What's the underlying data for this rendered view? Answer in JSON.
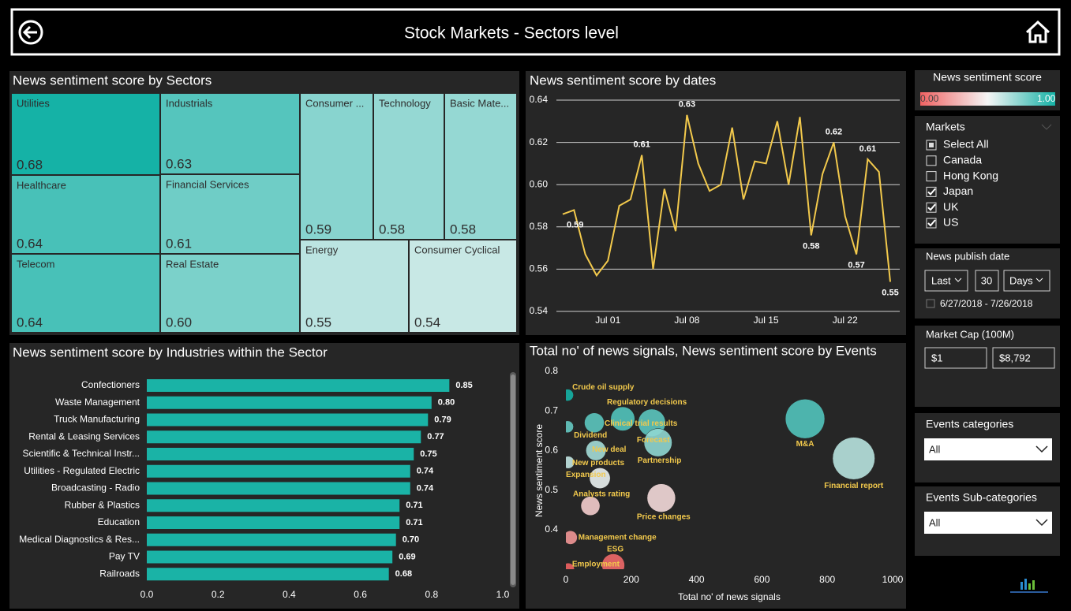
{
  "header": {
    "title": "Stock Markets - Sectors level"
  },
  "chart_data": [
    {
      "type": "treemap",
      "title": "News sentiment score by Sectors",
      "categories": [
        "Utilities",
        "Industrials",
        "Consumer ...",
        "Technology",
        "Basic Mate...",
        "Healthcare",
        "Financial Services",
        "Energy",
        "Consumer Cyclical",
        "Telecom",
        "Real Estate"
      ],
      "values": [
        0.68,
        0.63,
        0.59,
        0.58,
        0.58,
        0.64,
        0.61,
        0.55,
        0.54,
        0.64,
        0.6
      ],
      "value_labels": [
        "0.68",
        "0.63",
        "0.59",
        "0.58",
        "0.58",
        "0.64",
        "0.61",
        "0.55",
        "0.54",
        "0.64",
        "0.60"
      ]
    },
    {
      "type": "line",
      "title": "News sentiment score by dates",
      "categories": [
        null,
        null,
        null,
        null,
        "Jul 01",
        null,
        null,
        null,
        null,
        null,
        null,
        "Jul 08",
        null,
        null,
        null,
        null,
        null,
        null,
        "Jul 15",
        null,
        null,
        null,
        null,
        null,
        null,
        "Jul 22",
        null,
        null,
        null,
        null
      ],
      "values": [
        0.586,
        0.588,
        0.567,
        0.557,
        0.564,
        0.59,
        0.593,
        0.614,
        0.56,
        0.598,
        0.578,
        0.633,
        0.61,
        0.597,
        0.6,
        0.627,
        0.593,
        0.611,
        0.61,
        0.63,
        0.6,
        0.632,
        0.576,
        0.605,
        0.62,
        0.585,
        0.567,
        0.612,
        0.606,
        0.554
      ],
      "value_labels": [
        "0.59",
        null,
        null,
        null,
        null,
        null,
        null,
        "0.61",
        null,
        null,
        null,
        "0.63",
        null,
        null,
        null,
        null,
        null,
        null,
        null,
        null,
        null,
        null,
        "0.58",
        null,
        "0.62",
        null,
        "0.57",
        "0.61",
        null,
        "0.55"
      ],
      "color": "#f2c94c",
      "ylim": [
        0.54,
        0.64
      ],
      "yticks": [
        0.54,
        0.56,
        0.58,
        {
          "value": 0.6,
          "label": "0.60"
        },
        0.62,
        0.64
      ],
      "grid": true
    },
    {
      "type": "hbar",
      "title": "News sentiment score by Industries within the Sector",
      "categories": [
        "Confectioners",
        "Waste Management",
        "Truck Manufacturing",
        "Rental & Leasing Services",
        "Scientific & Technical Instr...",
        "Utilities - Regulated Electric",
        "Broadcasting - Radio",
        "Rubber & Plastics",
        "Education",
        "Medical Diagnostics & Res...",
        "Pay TV",
        "Railroads"
      ],
      "values": [
        0.85,
        0.8,
        0.79,
        0.77,
        0.75,
        0.74,
        0.74,
        0.71,
        0.71,
        0.7,
        0.69,
        0.68
      ],
      "value_labels": [
        "0.85",
        "0.80",
        "0.79",
        "0.77",
        "0.75",
        "0.74",
        "0.74",
        "0.71",
        "0.71",
        "0.70",
        "0.69",
        "0.68"
      ],
      "color": "#1ab3a6",
      "xlim": [
        0,
        1
      ],
      "xticks": [
        {
          "value": 0,
          "label": "0.0"
        },
        0.2,
        0.4,
        0.6,
        0.8,
        {
          "value": 1,
          "label": "1.0"
        }
      ]
    },
    {
      "type": "scatter",
      "title": "Total no' of news signals, News sentiment score by Events",
      "x_label": "Total no' of news signals",
      "y_label": "News sentiment score",
      "categories": [
        "Crude oil supply",
        "Regulatory decisions",
        "Clinical trial results",
        "Dividend",
        "Forecast",
        "Partnership",
        "New deal",
        "New products",
        "Expansion",
        "Analysts rating",
        "Price changes",
        "Management change",
        "ESG",
        "Employment",
        "M&A",
        "Financial report"
      ],
      "x": [
        5,
        87,
        174,
        5,
        263,
        282,
        92,
        7,
        104,
        75,
        292,
        14,
        145,
        7,
        732,
        881
      ],
      "values": [
        0.74,
        0.67,
        0.68,
        0.66,
        0.67,
        0.62,
        0.6,
        0.57,
        0.53,
        0.46,
        0.48,
        0.38,
        0.31,
        0.3,
        0.68,
        0.58
      ],
      "label_color": "#f2c94c",
      "xlim": [
        0,
        1000
      ],
      "xticks": [
        0,
        200,
        400,
        600,
        800,
        1000
      ],
      "ylim": [
        0.3,
        0.8
      ],
      "yticks": [
        0.4,
        0.5,
        0.6,
        0.7,
        0.8
      ]
    }
  ],
  "filters": {
    "legend": {
      "title": "News sentiment score",
      "min_label": "0.00",
      "max_label": "1.00",
      "colors": [
        "#f06262",
        "#f5f5f5",
        "#15b2a6"
      ]
    },
    "markets": {
      "title": "Markets",
      "options": [
        {
          "label": "Select All",
          "state": "partial"
        },
        {
          "label": "Canada",
          "state": "unchecked"
        },
        {
          "label": "Hong Kong",
          "state": "unchecked"
        },
        {
          "label": "Japan",
          "state": "checked"
        },
        {
          "label": "UK",
          "state": "checked"
        },
        {
          "label": "US",
          "state": "checked"
        }
      ]
    },
    "date": {
      "title": "News publish date",
      "mode": "Last",
      "count": "30",
      "unit": "Days",
      "range": "6/27/2018 - 7/26/2018"
    },
    "market_cap": {
      "title": "Market Cap (100M)",
      "min": "$1",
      "max": "$8,792"
    },
    "events_categories": {
      "title": "Events categories",
      "selected": "All"
    },
    "events_subcategories": {
      "title": "Events Sub-categories",
      "selected": "All"
    }
  }
}
